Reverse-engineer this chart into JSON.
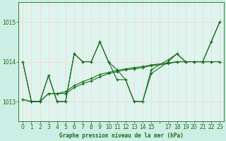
{
  "title": "Graphe pression niveau de la mer (hPa)",
  "bg_color": "#cceee4",
  "plot_bg": "#ddf5ee",
  "grid_color": "#ffcccc",
  "line_color": "#1a6b1a",
  "xlim": [
    -0.5,
    23.5
  ],
  "ylim": [
    1012.5,
    1015.5
  ],
  "yticks": [
    1013,
    1014,
    1015
  ],
  "xtick_labels": [
    "0",
    "1",
    "2",
    "3",
    "4",
    "5",
    "6",
    "7",
    "8",
    "9",
    "10",
    "11",
    "12",
    "13",
    "14",
    "15",
    "",
    "17",
    "18",
    "19",
    "20",
    "21",
    "22",
    "23"
  ],
  "s1_x": [
    0,
    1,
    2,
    3,
    4,
    5,
    6,
    7,
    8,
    9,
    10,
    11,
    12,
    13,
    14,
    15,
    17,
    18,
    19,
    20,
    21,
    22,
    23
  ],
  "s1_y": [
    1014.0,
    1013.0,
    1013.0,
    1013.65,
    1013.0,
    1013.0,
    1014.2,
    1014.0,
    1014.0,
    1014.5,
    1014.0,
    1013.8,
    1013.55,
    1013.0,
    1013.0,
    1013.7,
    1014.0,
    1014.2,
    1014.0,
    1014.0,
    1014.0,
    1014.5,
    1015.0
  ],
  "s2_x": [
    0,
    1,
    2,
    3,
    4,
    5,
    6,
    7,
    8,
    9,
    10,
    11,
    12,
    13,
    14,
    15,
    17,
    18,
    19,
    20,
    21,
    22,
    23
  ],
  "s2_y": [
    1014.0,
    1013.0,
    1013.0,
    1013.65,
    1013.0,
    1013.0,
    1014.2,
    1014.0,
    1014.0,
    1014.5,
    1014.0,
    1013.55,
    1013.55,
    1013.0,
    1013.0,
    1013.8,
    1014.05,
    1014.2,
    1014.0,
    1014.0,
    1014.0,
    1014.5,
    1015.0
  ],
  "s3_x": [
    0,
    1,
    2,
    3,
    4,
    5,
    6,
    7,
    8,
    9,
    10,
    11,
    12,
    13,
    14,
    15,
    17,
    18,
    19,
    20,
    21,
    22,
    23
  ],
  "s3_y": [
    1013.05,
    1013.0,
    1013.0,
    1013.2,
    1013.2,
    1013.2,
    1013.35,
    1013.45,
    1013.52,
    1013.62,
    1013.7,
    1013.75,
    1013.8,
    1013.82,
    1013.85,
    1013.9,
    1013.95,
    1014.0,
    1014.0,
    1014.0,
    1014.0,
    1014.0,
    1014.0
  ],
  "s4_x": [
    0,
    1,
    2,
    3,
    4,
    5,
    6,
    7,
    8,
    9,
    10,
    11,
    12,
    13,
    14,
    15,
    17,
    18,
    19,
    20,
    21,
    22,
    23
  ],
  "s4_y": [
    1013.05,
    1013.0,
    1013.0,
    1013.2,
    1013.2,
    1013.25,
    1013.4,
    1013.5,
    1013.58,
    1013.68,
    1013.73,
    1013.78,
    1013.82,
    1013.85,
    1013.88,
    1013.92,
    1013.97,
    1014.0,
    1014.0,
    1014.0,
    1014.0,
    1014.0,
    1014.0
  ]
}
